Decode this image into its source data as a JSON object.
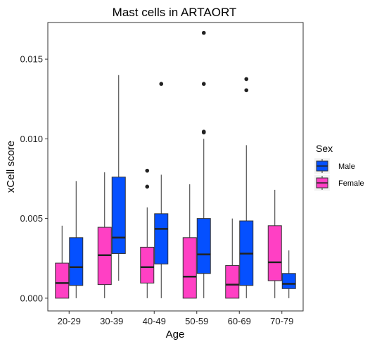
{
  "chart_data": {
    "type": "boxplot",
    "title": "Mast cells in ARTAORT",
    "xlabel": "Age",
    "ylabel": "xCell score",
    "categories": [
      "20-29",
      "30-39",
      "40-49",
      "50-59",
      "60-69",
      "70-79"
    ],
    "ylim": [
      -0.0008,
      0.0173
    ],
    "yticks": [
      0.0,
      0.005,
      0.01,
      0.015
    ],
    "ytick_labels": [
      "0.000",
      "0.005",
      "0.010",
      "0.015"
    ],
    "grid": false,
    "legend": {
      "title": "Sex",
      "placement": "right",
      "entries": [
        {
          "label": "Male",
          "color": "#0550ff"
        },
        {
          "label": "Female",
          "color": "#ff40c4"
        }
      ]
    },
    "series": [
      {
        "name": "Female",
        "color": "#ff40c4",
        "boxes": [
          {
            "min": 0.0,
            "q1": 0.0,
            "median": 0.00095,
            "q3": 0.0022,
            "max": 0.00455,
            "outliers": []
          },
          {
            "min": 0.0,
            "q1": 0.00085,
            "median": 0.0027,
            "q3": 0.00445,
            "max": 0.0079,
            "outliers": []
          },
          {
            "min": 0.0,
            "q1": 0.00095,
            "median": 0.00195,
            "q3": 0.0032,
            "max": 0.0057,
            "outliers": [
              0.007,
              0.008
            ]
          },
          {
            "min": 0.0,
            "q1": 0.0,
            "median": 0.00135,
            "q3": 0.0038,
            "max": 0.00715,
            "outliers": []
          },
          {
            "min": 0.0,
            "q1": 0.0,
            "median": 0.00085,
            "q3": 0.00205,
            "max": 0.005,
            "outliers": []
          },
          {
            "min": 0.0,
            "q1": 0.0011,
            "median": 0.00225,
            "q3": 0.00455,
            "max": 0.0068,
            "outliers": []
          }
        ]
      },
      {
        "name": "Male",
        "color": "#0550ff",
        "boxes": [
          {
            "min": 0.0,
            "q1": 0.0008,
            "median": 0.00195,
            "q3": 0.0038,
            "max": 0.00735,
            "outliers": []
          },
          {
            "min": 0.0011,
            "q1": 0.0028,
            "median": 0.0038,
            "q3": 0.0076,
            "max": 0.014,
            "outliers": []
          },
          {
            "min": 0.0,
            "q1": 0.00215,
            "median": 0.00435,
            "q3": 0.0053,
            "max": 0.00775,
            "outliers": [
              0.01345
            ]
          },
          {
            "min": 0.0,
            "q1": 0.00155,
            "median": 0.00275,
            "q3": 0.005,
            "max": 0.01,
            "outliers": [
              0.0104,
              0.01045,
              0.01345,
              0.01665
            ]
          },
          {
            "min": 0.0,
            "q1": 0.0008,
            "median": 0.0028,
            "q3": 0.00485,
            "max": 0.0096,
            "outliers": [
              0.01305,
              0.01375
            ]
          },
          {
            "min": 0.0,
            "q1": 0.0006,
            "median": 0.0009,
            "q3": 0.00155,
            "max": 0.003,
            "outliers": []
          }
        ]
      }
    ]
  }
}
